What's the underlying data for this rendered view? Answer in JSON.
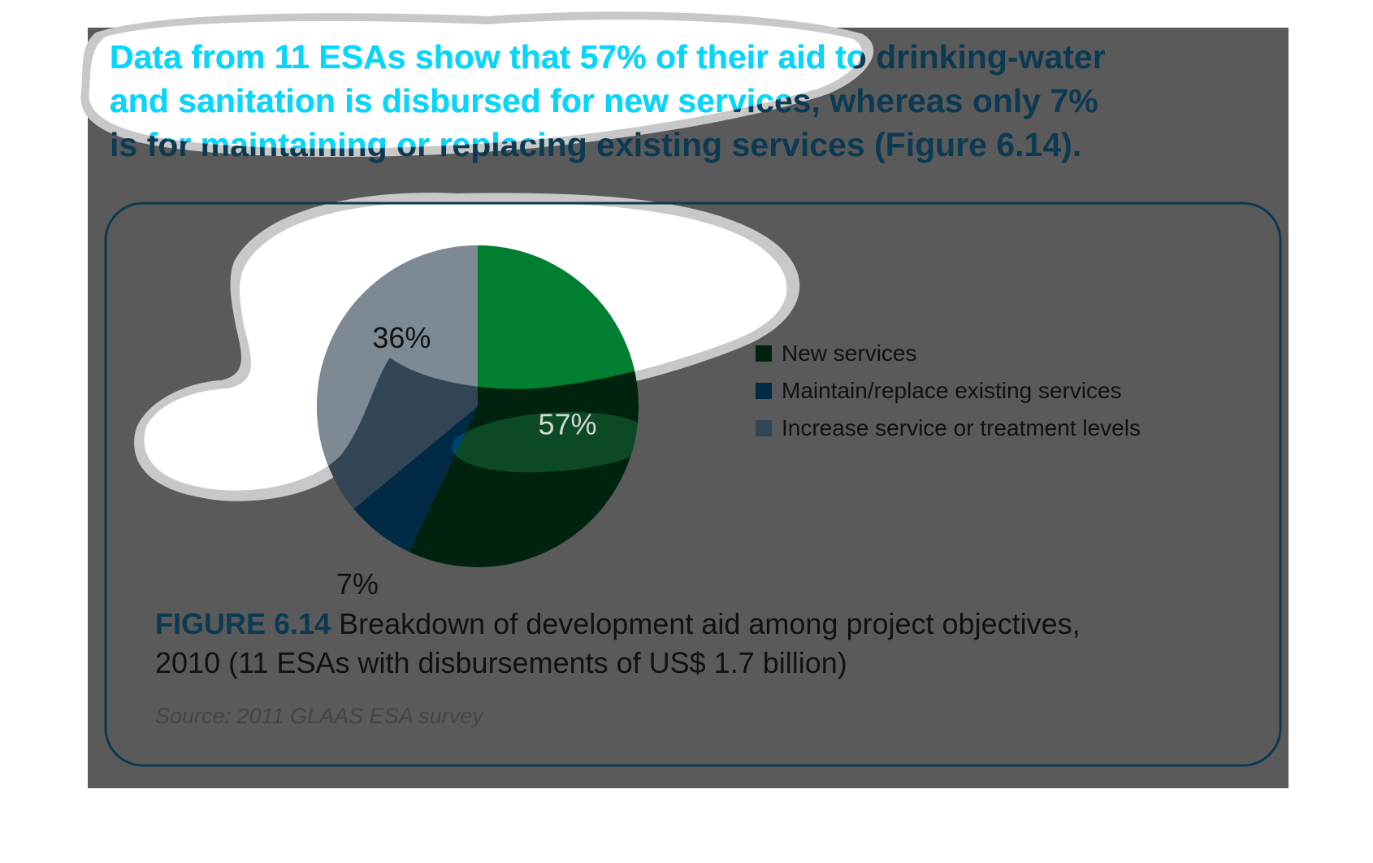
{
  "intro": {
    "line1": "Data from 11 ESAs show that 57% of their aid to drinking-water",
    "line2": "and sanitation is disbursed for new services, whereas only 7%",
    "line3": "is for maintaining or replacing existing services (Figure 6.14)."
  },
  "figure": {
    "label": "FIGURE 6.14",
    "caption_line1": "Breakdown of development aid among project objectives,",
    "caption_line2": "2010 (11 ESAs with disbursements of US$ 1.7 billion)",
    "source": "Source: 2011 GLAAS ESA survey"
  },
  "colors": {
    "background": "#5a5a5a",
    "title_text": "#0b3a52",
    "title_highlight": "#00d8ff",
    "panel_border": "#0b3a52",
    "new_services": "#00230f",
    "maintain_replace": "#002a45",
    "increase_levels": "#324555",
    "source_text": "#454545"
  },
  "chart_data": {
    "type": "pie",
    "slices": [
      {
        "name": "New services",
        "value": 57,
        "label": "57%",
        "color": "#00230f"
      },
      {
        "name": "Maintain/replace existing services",
        "value": 7,
        "label": "7%",
        "color": "#002a45"
      },
      {
        "name": "Increase service or treatment levels",
        "value": 36,
        "label": "36%",
        "color": "#324555"
      }
    ],
    "start": "12 o'clock",
    "direction": "clockwise",
    "legend": {
      "placement": "right",
      "entries": [
        "New services",
        "Maintain/replace existing services",
        "Increase service or treatment levels"
      ]
    }
  }
}
